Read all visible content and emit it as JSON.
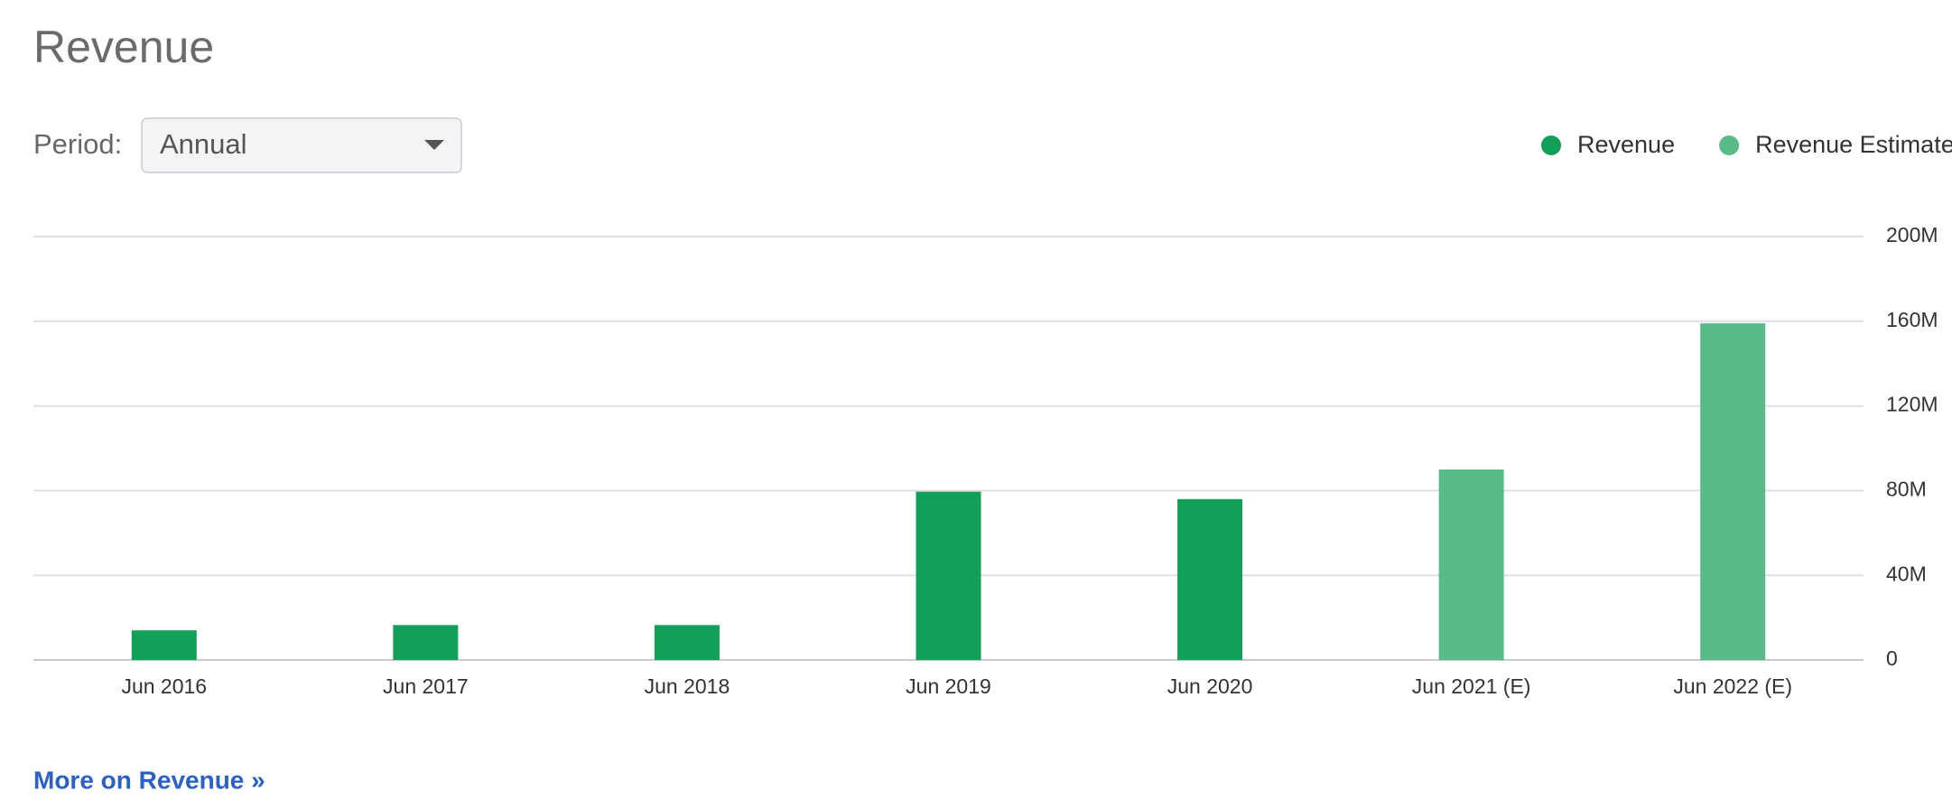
{
  "ui": {
    "title": "Revenue",
    "period_label": "Period:",
    "period_value": "Annual",
    "link": "More on Revenue »"
  },
  "chart_data": {
    "type": "bar",
    "categories": [
      "Jun 2016",
      "Jun 2017",
      "Jun 2018",
      "Jun 2019",
      "Jun 2020",
      "Jun 2021 (E)",
      "Jun 2022 (E)"
    ],
    "series": [
      {
        "name": "Revenue",
        "color": "#129f57",
        "values": [
          14,
          16.5,
          16.5,
          79.5,
          76,
          null,
          null
        ]
      },
      {
        "name": "Revenue Estimate",
        "color": "#58bb88",
        "values": [
          null,
          null,
          null,
          null,
          null,
          90,
          159
        ]
      }
    ],
    "ylim": [
      0,
      200
    ],
    "yticks": [
      0,
      {
        "value": 40,
        "label": "40M"
      },
      {
        "value": 80,
        "label": "80M"
      },
      {
        "value": 120,
        "label": "120M"
      },
      {
        "value": 160,
        "label": "160M"
      },
      {
        "value": 200,
        "label": "200M"
      }
    ],
    "grid": true,
    "legend": "top-right"
  }
}
